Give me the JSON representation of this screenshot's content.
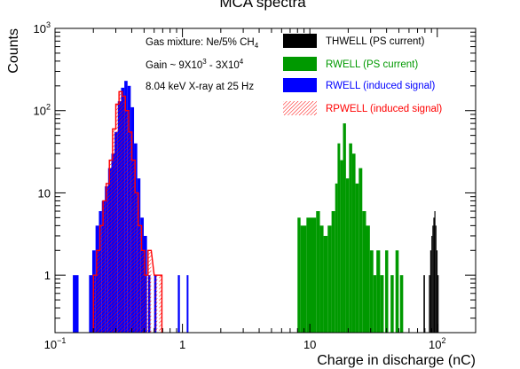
{
  "chart_data": {
    "type": "bar",
    "title": "MCA spectra",
    "xlabel": "Charge in discharge (nC)",
    "ylabel": "Counts",
    "xscale": "log",
    "yscale": "log",
    "xlim": [
      0.1,
      200
    ],
    "ylim": [
      0.2,
      1000
    ],
    "x_ticks": [
      {
        "value": 0.1,
        "base": "10",
        "exp": "−1"
      },
      {
        "value": 1,
        "label": "1"
      },
      {
        "value": 10,
        "label": "10"
      },
      {
        "value": 100,
        "base": "10",
        "exp": "2"
      }
    ],
    "y_ticks": [
      {
        "value": 1,
        "label": "1"
      },
      {
        "value": 10,
        "label": "10"
      },
      {
        "value": 100,
        "base": "10",
        "exp": "2"
      },
      {
        "value": 1000,
        "base": "10",
        "exp": "3"
      }
    ],
    "annotations": [
      {
        "text": "Gas mixture: Ne/5% CH",
        "sub": "4"
      },
      {
        "text": "Gain ~ 9X10",
        "sup1": "3",
        "mid": " - 3X10",
        "sup2": "4"
      },
      {
        "text": "8.04 keV X-ray at 25 Hz"
      }
    ],
    "legend": {
      "position": "top-right",
      "entries": [
        {
          "label": "THWELL (PS current)",
          "color": "#000000",
          "text_color": "#000000",
          "style": "fill"
        },
        {
          "label": "RWELL (PS current)",
          "color": "#009900",
          "text_color": "#009900",
          "style": "fill"
        },
        {
          "label": "RWELL (induced signal)",
          "color": "#0000ff",
          "text_color": "#0000ff",
          "style": "fill"
        },
        {
          "label": "RPWELL (induced signal)",
          "color": "#ff0000",
          "text_color": "#ff0000",
          "style": "hatch"
        }
      ]
    },
    "series": [
      {
        "label_ref": "RWELL (induced signal)",
        "color": "#0000ff",
        "style": "fill",
        "bins": [
          [
            0.138,
            0.153,
            1
          ],
          [
            0.185,
            0.196,
            1
          ],
          [
            0.196,
            0.208,
            2
          ],
          [
            0.208,
            0.221,
            4
          ],
          [
            0.221,
            0.233,
            6
          ],
          [
            0.233,
            0.246,
            8
          ],
          [
            0.246,
            0.261,
            12
          ],
          [
            0.261,
            0.277,
            20
          ],
          [
            0.277,
            0.293,
            30
          ],
          [
            0.293,
            0.311,
            55
          ],
          [
            0.311,
            0.33,
            130
          ],
          [
            0.33,
            0.35,
            190
          ],
          [
            0.35,
            0.371,
            230
          ],
          [
            0.371,
            0.393,
            200
          ],
          [
            0.393,
            0.417,
            110
          ],
          [
            0.417,
            0.442,
            40
          ],
          [
            0.442,
            0.468,
            15
          ],
          [
            0.468,
            0.497,
            5
          ],
          [
            0.497,
            0.527,
            3
          ],
          [
            0.537,
            0.56,
            1
          ],
          [
            0.6,
            0.625,
            1
          ],
          [
            0.92,
            0.955,
            1
          ],
          [
            1.08,
            1.115,
            1
          ]
        ]
      },
      {
        "label_ref": "RPWELL (induced signal)",
        "color": "#ff0000",
        "style": "hatch",
        "bins": [
          [
            0.2,
            0.212,
            1
          ],
          [
            0.212,
            0.225,
            2
          ],
          [
            0.225,
            0.238,
            4
          ],
          [
            0.238,
            0.252,
            8
          ],
          [
            0.252,
            0.267,
            13
          ],
          [
            0.267,
            0.283,
            25
          ],
          [
            0.283,
            0.3,
            60
          ],
          [
            0.3,
            0.318,
            120
          ],
          [
            0.318,
            0.337,
            170
          ],
          [
            0.337,
            0.357,
            150
          ],
          [
            0.357,
            0.379,
            100
          ],
          [
            0.379,
            0.401,
            55
          ],
          [
            0.401,
            0.425,
            25
          ],
          [
            0.425,
            0.451,
            10
          ],
          [
            0.451,
            0.478,
            4
          ],
          [
            0.478,
            0.506,
            2
          ],
          [
            0.506,
            0.537,
            1
          ],
          [
            0.537,
            0.569,
            2
          ],
          [
            0.6,
            0.636,
            1
          ],
          [
            0.655,
            0.69,
            1
          ]
        ]
      },
      {
        "label_ref": "RWELL (PS current)",
        "color": "#009900",
        "style": "fill",
        "bins": [
          [
            8.0,
            8.45,
            5
          ],
          [
            8.45,
            9.4,
            4
          ],
          [
            9.4,
            11.2,
            5
          ],
          [
            11.2,
            12.0,
            6
          ],
          [
            12.0,
            12.8,
            4
          ],
          [
            12.8,
            13.8,
            3
          ],
          [
            13.8,
            14.8,
            4
          ],
          [
            14.8,
            15.8,
            6
          ],
          [
            15.8,
            16.5,
            13
          ],
          [
            16.5,
            17.3,
            40
          ],
          [
            17.3,
            18.2,
            25
          ],
          [
            18.2,
            19.2,
            70
          ],
          [
            19.2,
            20.3,
            15
          ],
          [
            20.3,
            21.5,
            40
          ],
          [
            21.5,
            22.8,
            30
          ],
          [
            22.8,
            24.2,
            13
          ],
          [
            24.2,
            25.8,
            20
          ],
          [
            25.8,
            27.6,
            6
          ],
          [
            27.6,
            29.6,
            4
          ],
          [
            29.6,
            31.5,
            2
          ],
          [
            31.5,
            33.3,
            1
          ],
          [
            33.3,
            35.6,
            2
          ],
          [
            35.6,
            38.0,
            1
          ],
          [
            39.0,
            41.2,
            2
          ],
          [
            43.0,
            45.5,
            1
          ],
          [
            47.0,
            49.8,
            2
          ],
          [
            51.0,
            54.0,
            1
          ]
        ]
      },
      {
        "label_ref": "THWELL (PS current)",
        "color": "#000000",
        "style": "fill",
        "bins": [
          [
            78.0,
            80.0,
            1
          ],
          [
            86.0,
            88.0,
            1
          ],
          [
            88.0,
            90.0,
            2
          ],
          [
            90.0,
            91.6,
            3
          ],
          [
            91.6,
            93.2,
            4
          ],
          [
            93.2,
            94.9,
            5
          ],
          [
            94.9,
            96.7,
            6
          ],
          [
            96.7,
            98.5,
            4
          ],
          [
            98.5,
            100.5,
            2
          ],
          [
            100.5,
            102.5,
            1
          ]
        ]
      }
    ]
  }
}
